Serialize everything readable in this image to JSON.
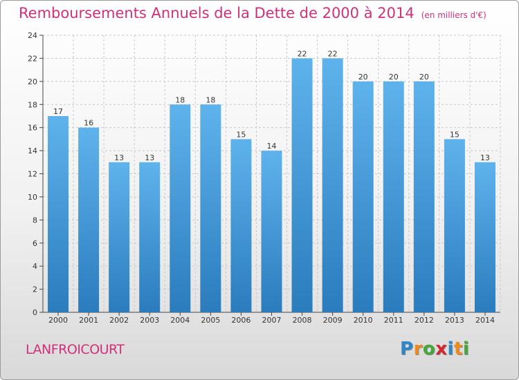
{
  "title": "Remboursements Annuels de la Dette de 2000 à 2014",
  "subtitle": "(en milliers d'€)",
  "commune": "LANFROICOURT",
  "logo": {
    "letters": [
      "P",
      "r",
      "o",
      "x",
      "i",
      "t",
      "i"
    ],
    "colors": [
      "#2f86c8",
      "#f08a1c",
      "#44a83a",
      "#d8262f",
      "#2f86c8",
      "#f08a1c",
      "#44a83a"
    ]
  },
  "colors": {
    "bar_light": "#5fb3ec",
    "bar_dark": "#2a7cbd",
    "title": "#d0307a"
  },
  "chart_data": {
    "type": "bar",
    "categories": [
      "2000",
      "2001",
      "2002",
      "2003",
      "2004",
      "2005",
      "2006",
      "2007",
      "2008",
      "2009",
      "2010",
      "2011",
      "2012",
      "2013",
      "2014"
    ],
    "values": [
      17,
      16,
      13,
      13,
      18,
      18,
      15,
      14,
      22,
      22,
      20,
      20,
      20,
      15,
      13
    ],
    "data_labels": [
      "17",
      "16",
      "13",
      "13",
      "18",
      "18",
      "15",
      "14",
      "22",
      "22",
      "20",
      "20",
      "20",
      "15",
      "13"
    ],
    "yticks": [
      "0",
      "2",
      "4",
      "6",
      "8",
      "10",
      "12",
      "14",
      "16",
      "18",
      "20",
      "22",
      "24"
    ],
    "ylim": [
      0,
      24
    ],
    "grid": true,
    "legend": "none"
  }
}
